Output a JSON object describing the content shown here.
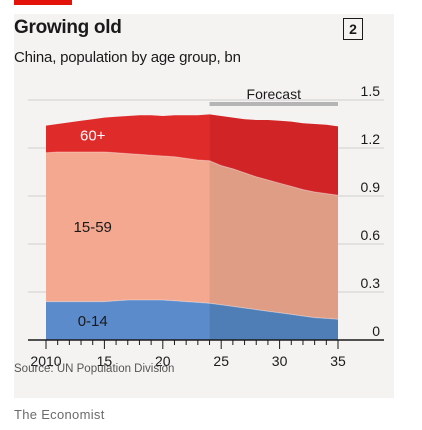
{
  "header": {
    "title": "Growing old",
    "subtitle": "China, population by age group, bn",
    "badge": "2"
  },
  "footer": {
    "source": "Source: UN Population Division",
    "brand": "The Economist"
  },
  "chart_data": {
    "type": "area",
    "stacked": true,
    "x": [
      2010,
      2011,
      2012,
      2013,
      2014,
      2015,
      2016,
      2017,
      2018,
      2019,
      2020,
      2021,
      2022,
      2023,
      2024,
      2025,
      2026,
      2027,
      2028,
      2029,
      2030,
      2031,
      2032,
      2033,
      2034,
      2035
    ],
    "x_tick_values": [
      2010,
      2015,
      2020,
      2025,
      2030,
      2035
    ],
    "x_tick_labels": [
      "2010",
      "15",
      "20",
      "25",
      "30",
      "35"
    ],
    "y_ticks": [
      0,
      0.3,
      0.6,
      0.9,
      1.2,
      1.5
    ],
    "y_tick_labels": [
      "0",
      "0.3",
      "0.6",
      "0.9",
      "1.2",
      "1.5"
    ],
    "ylim": [
      0,
      1.5
    ],
    "xlim": [
      2010,
      2035
    ],
    "y_axis_side": "right",
    "grid": true,
    "forecast": {
      "label": "Forecast",
      "start": 2024,
      "end": 2035
    },
    "series": [
      {
        "name": "0-14",
        "color": "#5b8bcb",
        "forecast_color": "#4f7eb6",
        "values": [
          0.24,
          0.24,
          0.24,
          0.24,
          0.24,
          0.24,
          0.245,
          0.25,
          0.25,
          0.25,
          0.25,
          0.245,
          0.24,
          0.235,
          0.23,
          0.22,
          0.21,
          0.2,
          0.19,
          0.18,
          0.17,
          0.16,
          0.15,
          0.14,
          0.135,
          0.13
        ]
      },
      {
        "name": "15-59",
        "color": "#f3a88f",
        "forecast_color": "#df9d86",
        "values": [
          0.93,
          0.935,
          0.935,
          0.935,
          0.935,
          0.935,
          0.925,
          0.915,
          0.91,
          0.905,
          0.9,
          0.9,
          0.895,
          0.89,
          0.89,
          0.87,
          0.86,
          0.845,
          0.83,
          0.82,
          0.81,
          0.8,
          0.79,
          0.785,
          0.78,
          0.775
        ]
      },
      {
        "name": "60+",
        "color": "#e02b2b",
        "forecast_color": "#d12427",
        "values": [
          0.17,
          0.175,
          0.185,
          0.195,
          0.205,
          0.215,
          0.225,
          0.235,
          0.245,
          0.25,
          0.25,
          0.26,
          0.27,
          0.28,
          0.29,
          0.31,
          0.32,
          0.335,
          0.355,
          0.375,
          0.39,
          0.405,
          0.415,
          0.425,
          0.43,
          0.43
        ]
      }
    ]
  }
}
